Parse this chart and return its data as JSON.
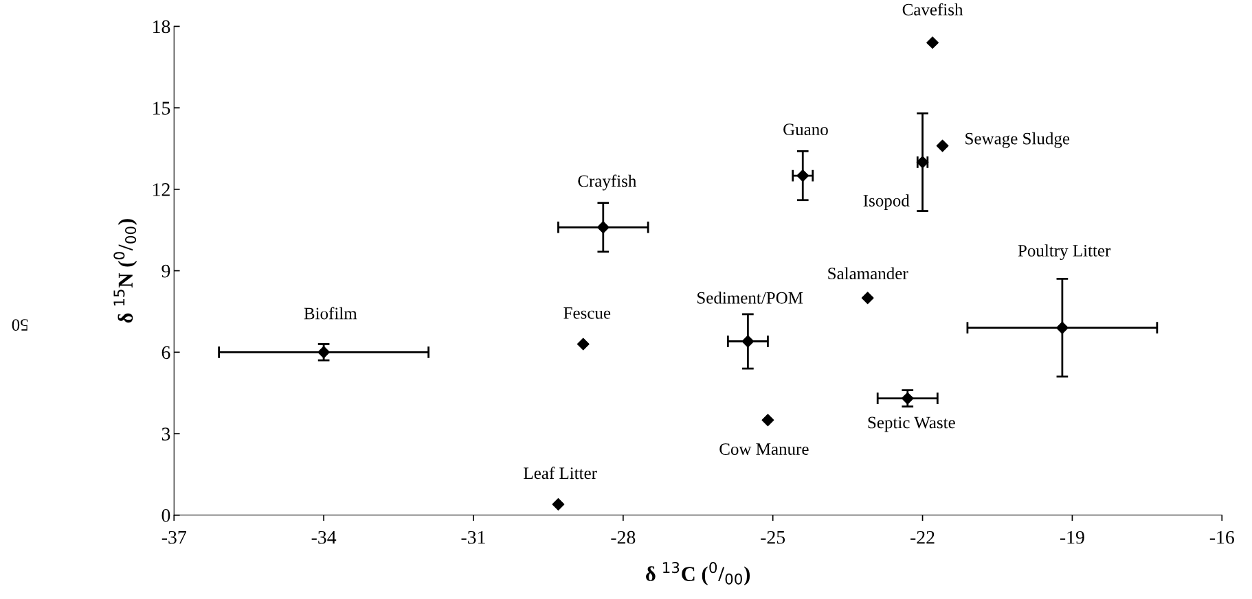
{
  "chart_data": {
    "type": "scatter",
    "xlabel": "δ $^{13}$C ($^{0}$/$_{00}$)",
    "ylabel": "δ $^{15}$N ($^{0}$/$_{00}$)",
    "x": [
      -21.8,
      -21.6,
      -22.0,
      -24.4,
      -28.4,
      -34.0,
      -28.8,
      -25.5,
      -23.1,
      -19.2,
      -22.3,
      -25.1,
      -29.3
    ],
    "series": [
      {
        "color": "#000000",
        "values": [
          17.4,
          13.6,
          13.0,
          12.5,
          10.6,
          6.0,
          6.3,
          6.4,
          8.0,
          6.9,
          4.3,
          3.5,
          0.4
        ],
        "errors": [
          null,
          null,
          1.8,
          0.9,
          0.9,
          0.3,
          null,
          1.0,
          null,
          1.8,
          0.3,
          null,
          null
        ],
        "xerrors": [
          null,
          null,
          0.1,
          0.2,
          0.9,
          2.1,
          null,
          0.4,
          null,
          1.9,
          0.6,
          null,
          null
        ]
      }
    ],
    "marker": "diamond",
    "grid": false,
    "legend": false,
    "xlim": [
      -37,
      -16
    ],
    "xticks": [
      -37,
      -34,
      -31,
      -28,
      -25,
      -22,
      -19,
      -16
    ],
    "ylim": [
      0,
      18
    ],
    "yticks": [
      0,
      3,
      6,
      9,
      12,
      15,
      18
    ],
    "annotations": [
      {
        "text": "Cavefish",
        "x": -21.8,
        "y": 17.4
      },
      {
        "text": "Sewage Sludge",
        "x": -21.6,
        "y": 13.6
      },
      {
        "text": "Isopod",
        "x": -22.0,
        "y": 13.0
      },
      {
        "text": "Guano",
        "x": -24.4,
        "y": 12.5
      },
      {
        "text": "Crayfish",
        "x": -28.4,
        "y": 10.6
      },
      {
        "text": "Biofilm",
        "x": -34.0,
        "y": 6.0
      },
      {
        "text": "Fescue",
        "x": -28.8,
        "y": 6.3
      },
      {
        "text": "Sediment/POM",
        "x": -25.5,
        "y": 6.4
      },
      {
        "text": "Salamander",
        "x": -23.1,
        "y": 8.0
      },
      {
        "text": "Poultry Litter",
        "x": -19.2,
        "y": 8.7
      },
      {
        "text": "Septic Waste",
        "x": -22.3,
        "y": 4.3
      },
      {
        "text": "Cow Manure",
        "x": -25.1,
        "y": 3.5
      },
      {
        "text": "Leaf Litter",
        "x": -29.3,
        "y": 0.4
      },
      "50"
    ]
  }
}
